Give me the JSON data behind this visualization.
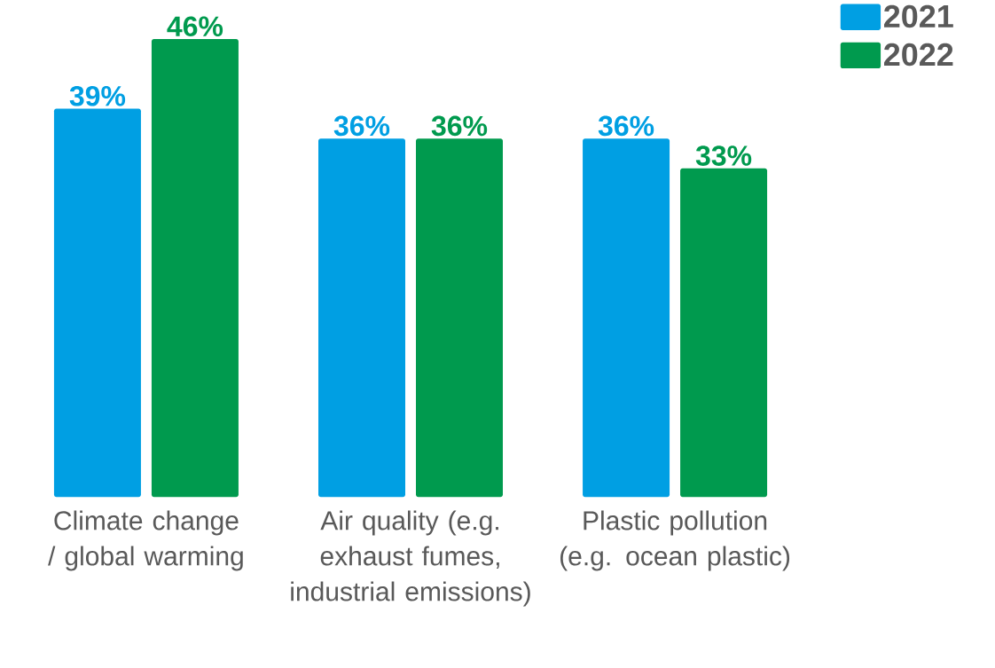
{
  "chart_data": {
    "type": "bar",
    "categories": [
      "Climate change / global warming",
      "Air quality (e.g. exhaust fumes, industrial emissions)",
      "Plastic pollution (e.g. ocean plastic)"
    ],
    "series": [
      {
        "name": "2021",
        "color": "#009fe3",
        "values": [
          39,
          36,
          36
        ],
        "value_labels": [
          "39%",
          "36%",
          "36%"
        ]
      },
      {
        "name": "2022",
        "color": "#009a4e",
        "values": [
          46,
          36,
          33
        ],
        "value_labels": [
          "46%",
          "36%",
          "33%"
        ]
      }
    ],
    "legend": "top right",
    "grid": false
  }
}
